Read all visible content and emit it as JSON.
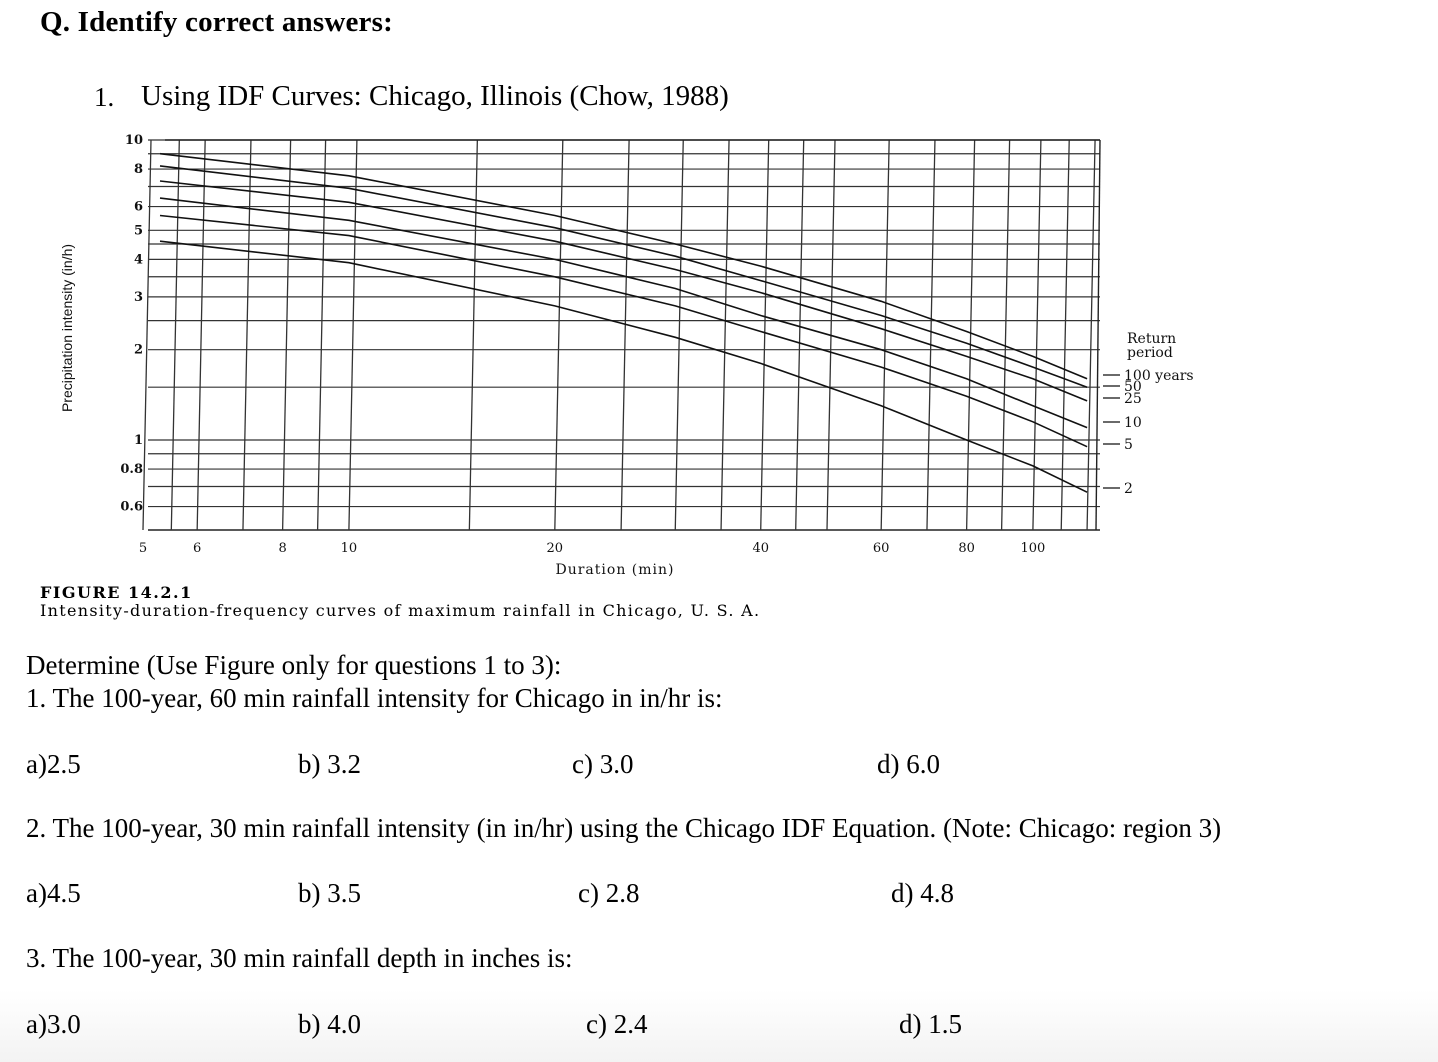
{
  "heading": "Q. Identify correct answers:",
  "subquestion": {
    "number": "1.",
    "text": "Using IDF Curves: Chicago, Illinois (Chow, 1988)"
  },
  "figure": {
    "caption_title": "FIGURE 14.2.1",
    "caption_text": "Intensity-duration-frequency curves of maximum rainfall in Chicago, U. S. A."
  },
  "chart_data": {
    "type": "line",
    "title": "Intensity-duration-frequency curves of maximum rainfall in Chicago, U. S. A.",
    "xlabel": "Duration (min)",
    "ylabel": "Precipitation intensity (in/h)",
    "xscale": "log",
    "yscale": "log",
    "xlim": [
      5,
      120
    ],
    "ylim": [
      0.5,
      10
    ],
    "x_ticks": [
      "5",
      "6",
      "8",
      "10",
      "20",
      "40",
      "60",
      "80",
      "100"
    ],
    "y_ticks": [
      "10",
      "8",
      "6",
      "5",
      "4",
      "3",
      "2",
      "1",
      "0.8",
      "0.6"
    ],
    "grid": true,
    "legend_title": "Return period",
    "legend_position": "right",
    "x": [
      5,
      10,
      20,
      30,
      40,
      60,
      80,
      100,
      120
    ],
    "series": [
      {
        "name": "100 years",
        "values": [
          9.0,
          7.6,
          5.6,
          4.5,
          3.8,
          2.9,
          2.3,
          1.9,
          1.6
        ]
      },
      {
        "name": "50",
        "values": [
          8.2,
          6.9,
          5.1,
          4.1,
          3.4,
          2.6,
          2.1,
          1.75,
          1.5
        ]
      },
      {
        "name": "25",
        "values": [
          7.3,
          6.2,
          4.6,
          3.7,
          3.1,
          2.35,
          1.9,
          1.6,
          1.35
        ]
      },
      {
        "name": "10",
        "values": [
          6.4,
          5.4,
          4.0,
          3.2,
          2.6,
          2.0,
          1.6,
          1.3,
          1.1
        ]
      },
      {
        "name": "5",
        "values": [
          5.6,
          4.8,
          3.5,
          2.8,
          2.3,
          1.75,
          1.4,
          1.15,
          0.95
        ]
      },
      {
        "name": "2",
        "values": [
          4.6,
          3.9,
          2.8,
          2.2,
          1.8,
          1.3,
          1.0,
          0.82,
          0.67
        ]
      }
    ],
    "legend_labels": [
      "100 years",
      "50",
      "25",
      "10",
      "5",
      "2"
    ]
  },
  "questions": {
    "intro": "Determine (Use Figure only for questions 1 to 3):",
    "items": [
      {
        "text": "1. The 100-year, 60 min rainfall intensity for Chicago in in/hr is:",
        "options": [
          "a)2.5",
          "b) 3.2",
          "c) 3.0",
          "d) 6.0"
        ]
      },
      {
        "text": "2. The 100-year, 30 min rainfall intensity (in in/hr) using the Chicago IDF Equation. (Note: Chicago: region 3)",
        "options": [
          "a)4.5",
          "b) 3.5",
          "c) 2.8",
          "d) 4.8"
        ]
      },
      {
        "text": "3. The 100-year, 30 min rainfall depth in inches is:",
        "options": [
          "a)3.0",
          "b) 4.0",
          "c) 2.4",
          "d) 1.5"
        ]
      }
    ]
  }
}
